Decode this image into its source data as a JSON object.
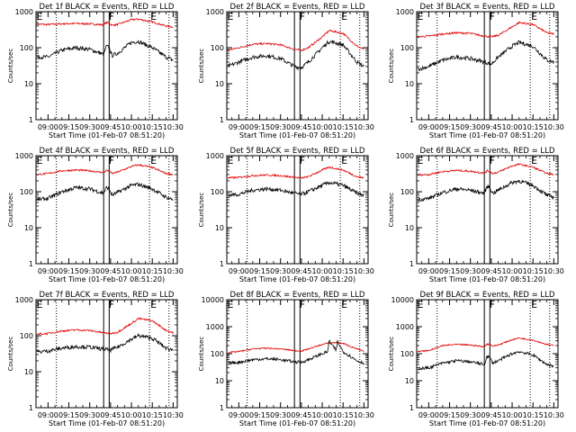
{
  "figure": {
    "background": "#ffffff",
    "axis_color": "#000000",
    "events_color": "#000000",
    "lld_color": "#e00000"
  },
  "chart_data": [
    {
      "type": "line",
      "title": "Det 1f BLACK = Events, RED = LLD",
      "xlabel": "Start Time (01-Feb-07 08:51:20)",
      "ylabel": "Counts/sec",
      "xticks": [
        "09:00",
        "09:15",
        "09:30",
        "09:45",
        "10:00",
        "10:15",
        "10:30"
      ],
      "yticks": [
        "1",
        "10",
        "100",
        "1000"
      ],
      "ylim": [
        1,
        1000
      ],
      "yscale": "log",
      "grid": false,
      "markers": [
        {
          "label": "E",
          "x": "08:51"
        },
        {
          "label": "F",
          "x": "09:43"
        },
        {
          "label": "E",
          "x": "10:13"
        }
      ],
      "dotted_lines": [
        "09:06",
        "10:13",
        "10:27"
      ],
      "solid_lines": [
        "09:40",
        "09:44"
      ],
      "series": [
        {
          "x": [
            "08:52",
            "09:00",
            "09:10",
            "09:20",
            "09:30",
            "09:40",
            "09:42",
            "09:44",
            "09:46",
            "09:50",
            "10:00",
            "10:05",
            "10:15",
            "10:25",
            "10:30"
          ],
          "values": [
            450,
            440,
            460,
            470,
            460,
            430,
            500,
            480,
            420,
            440,
            600,
            620,
            520,
            400,
            380
          ]
        },
        {
          "x": [
            "08:52",
            "09:00",
            "09:10",
            "09:20",
            "09:30",
            "09:40",
            "09:42",
            "09:44",
            "09:46",
            "09:50",
            "10:00",
            "10:05",
            "10:15",
            "10:25",
            "10:30"
          ],
          "values": [
            55,
            55,
            85,
            100,
            90,
            65,
            110,
            100,
            60,
            70,
            140,
            150,
            100,
            55,
            45
          ]
        }
      ]
    },
    {
      "type": "line",
      "title": "Det 2f BLACK = Events, RED = LLD",
      "xlabel": "Start Time (01-Feb-07 08:51:20)",
      "ylabel": "Counts/sec",
      "xticks": [
        "09:00",
        "09:15",
        "09:30",
        "09:45",
        "10:00",
        "10:15",
        "10:30"
      ],
      "yticks": [
        "1",
        "10",
        "100",
        "1000"
      ],
      "ylim": [
        1,
        1000
      ],
      "yscale": "log",
      "grid": false,
      "markers": [
        {
          "label": "E",
          "x": "08:51"
        },
        {
          "label": "F",
          "x": "09:43"
        },
        {
          "label": "E",
          "x": "10:13"
        }
      ],
      "dotted_lines": [
        "09:06",
        "10:13",
        "10:27"
      ],
      "solid_lines": [
        "09:40",
        "09:44"
      ],
      "series": [
        {
          "x": [
            "08:52",
            "09:00",
            "09:10",
            "09:20",
            "09:30",
            "09:40",
            "09:45",
            "09:50",
            "10:00",
            "10:05",
            "10:15",
            "10:25",
            "10:30"
          ],
          "values": [
            85,
            100,
            125,
            130,
            120,
            90,
            85,
            100,
            200,
            300,
            250,
            110,
            90
          ]
        },
        {
          "x": [
            "08:52",
            "09:00",
            "09:10",
            "09:20",
            "09:30",
            "09:40",
            "09:45",
            "09:50",
            "10:00",
            "10:05",
            "10:15",
            "10:25",
            "10:30"
          ],
          "values": [
            30,
            40,
            55,
            60,
            50,
            30,
            28,
            40,
            100,
            150,
            120,
            40,
            30
          ]
        }
      ]
    },
    {
      "type": "line",
      "title": "Det 3f BLACK = Events, RED = LLD",
      "xlabel": "Start Time (01-Feb-07 08:51:20)",
      "ylabel": "Counts/sec",
      "xticks": [
        "09:00",
        "09:15",
        "09:30",
        "09:45",
        "10:00",
        "10:15",
        "10:30"
      ],
      "yticks": [
        "1",
        "10",
        "100",
        "1000"
      ],
      "ylim": [
        1,
        1000
      ],
      "yscale": "log",
      "grid": false,
      "markers": [
        {
          "label": "E",
          "x": "08:51"
        },
        {
          "label": "F",
          "x": "09:43"
        },
        {
          "label": "E",
          "x": "10:13"
        }
      ],
      "dotted_lines": [
        "09:06",
        "10:13",
        "10:27"
      ],
      "solid_lines": [
        "09:40",
        "09:44"
      ],
      "series": [
        {
          "x": [
            "08:52",
            "09:00",
            "09:10",
            "09:20",
            "09:30",
            "09:40",
            "09:45",
            "09:50",
            "10:00",
            "10:05",
            "10:15",
            "10:25",
            "10:30"
          ],
          "values": [
            200,
            210,
            240,
            260,
            250,
            210,
            200,
            220,
            380,
            500,
            440,
            260,
            240
          ]
        },
        {
          "x": [
            "08:52",
            "09:00",
            "09:10",
            "09:20",
            "09:30",
            "09:40",
            "09:45",
            "09:50",
            "10:00",
            "10:05",
            "10:15",
            "10:25",
            "10:30"
          ],
          "values": [
            25,
            30,
            45,
            55,
            50,
            40,
            35,
            55,
            110,
            140,
            110,
            45,
            40
          ]
        }
      ]
    },
    {
      "type": "line",
      "title": "Det 4f BLACK = Events, RED = LLD",
      "xlabel": "Start Time (01-Feb-07 08:51:20)",
      "ylabel": "Counts/sec",
      "xticks": [
        "09:00",
        "09:15",
        "09:30",
        "09:45",
        "10:00",
        "10:15",
        "10:30"
      ],
      "yticks": [
        "1",
        "10",
        "100",
        "1000"
      ],
      "ylim": [
        1,
        1000
      ],
      "yscale": "log",
      "grid": false,
      "markers": [
        {
          "label": "E",
          "x": "08:51"
        },
        {
          "label": "F",
          "x": "09:43"
        },
        {
          "label": "E",
          "x": "10:13"
        }
      ],
      "dotted_lines": [
        "09:06",
        "10:13",
        "10:27"
      ],
      "solid_lines": [
        "09:40",
        "09:44"
      ],
      "series": [
        {
          "x": [
            "08:52",
            "09:00",
            "09:10",
            "09:20",
            "09:30",
            "09:40",
            "09:42",
            "09:44",
            "09:46",
            "09:50",
            "10:00",
            "10:05",
            "10:15",
            "10:25",
            "10:30"
          ],
          "values": [
            300,
            320,
            380,
            400,
            380,
            340,
            390,
            370,
            320,
            350,
            500,
            560,
            470,
            320,
            300
          ]
        },
        {
          "x": [
            "08:52",
            "09:00",
            "09:10",
            "09:20",
            "09:30",
            "09:40",
            "09:42",
            "09:44",
            "09:46",
            "09:50",
            "10:00",
            "10:05",
            "10:15",
            "10:25",
            "10:30"
          ],
          "values": [
            60,
            65,
            100,
            130,
            120,
            90,
            130,
            120,
            80,
            95,
            150,
            160,
            120,
            70,
            60
          ]
        }
      ]
    },
    {
      "type": "line",
      "title": "Det 5f BLACK = Events, RED = LLD",
      "xlabel": "Start Time (01-Feb-07 08:51:20)",
      "ylabel": "Counts/sec",
      "xticks": [
        "09:00",
        "09:15",
        "09:30",
        "09:45",
        "10:00",
        "10:15",
        "10:30"
      ],
      "yticks": [
        "1",
        "10",
        "100",
        "1000"
      ],
      "ylim": [
        1,
        1000
      ],
      "yscale": "log",
      "grid": false,
      "markers": [
        {
          "label": "E",
          "x": "08:51"
        },
        {
          "label": "F",
          "x": "09:43"
        },
        {
          "label": "E",
          "x": "10:13"
        }
      ],
      "dotted_lines": [
        "09:06",
        "10:13",
        "10:27"
      ],
      "solid_lines": [
        "09:40",
        "09:44"
      ],
      "series": [
        {
          "x": [
            "08:52",
            "09:00",
            "09:10",
            "09:20",
            "09:30",
            "09:40",
            "09:45",
            "09:50",
            "10:00",
            "10:05",
            "10:15",
            "10:25",
            "10:30"
          ],
          "values": [
            240,
            250,
            280,
            290,
            280,
            250,
            240,
            260,
            400,
            480,
            400,
            260,
            240
          ]
        },
        {
          "x": [
            "08:52",
            "09:00",
            "09:10",
            "09:20",
            "09:30",
            "09:40",
            "09:45",
            "09:50",
            "10:00",
            "10:05",
            "10:15",
            "10:25",
            "10:30"
          ],
          "values": [
            80,
            85,
            110,
            120,
            110,
            90,
            85,
            100,
            150,
            180,
            150,
            90,
            80
          ]
        }
      ]
    },
    {
      "type": "line",
      "title": "Det 6f BLACK = Events, RED = LLD",
      "xlabel": "Start Time (01-Feb-07 08:51:20)",
      "ylabel": "Counts/sec",
      "xticks": [
        "09:00",
        "09:15",
        "09:30",
        "09:45",
        "10:00",
        "10:15",
        "10:30"
      ],
      "yticks": [
        "1",
        "10",
        "100",
        "1000"
      ],
      "ylim": [
        1,
        1000
      ],
      "yscale": "log",
      "grid": false,
      "markers": [
        {
          "label": "E",
          "x": "08:51"
        },
        {
          "label": "F",
          "x": "09:43"
        },
        {
          "label": "E",
          "x": "10:13"
        }
      ],
      "dotted_lines": [
        "09:06",
        "10:13",
        "10:27"
      ],
      "solid_lines": [
        "09:40",
        "09:44"
      ],
      "series": [
        {
          "x": [
            "08:52",
            "09:00",
            "09:10",
            "09:20",
            "09:30",
            "09:40",
            "09:42",
            "09:44",
            "09:46",
            "09:50",
            "10:00",
            "10:05",
            "10:15",
            "10:25",
            "10:30"
          ],
          "values": [
            290,
            300,
            360,
            390,
            370,
            330,
            380,
            360,
            320,
            350,
            520,
            580,
            480,
            320,
            300
          ]
        },
        {
          "x": [
            "08:52",
            "09:00",
            "09:10",
            "09:20",
            "09:30",
            "09:40",
            "09:42",
            "09:44",
            "09:46",
            "09:50",
            "10:00",
            "10:05",
            "10:15",
            "10:25",
            "10:30"
          ],
          "values": [
            60,
            65,
            95,
            120,
            110,
            90,
            140,
            130,
            90,
            110,
            180,
            200,
            150,
            80,
            70
          ]
        }
      ]
    },
    {
      "type": "line",
      "title": "Det 7f BLACK = Events, RED = LLD",
      "xlabel": "Start Time (01-Feb-07 08:51:20)",
      "ylabel": "Counts/sec",
      "xticks": [
        "09:00",
        "09:15",
        "09:30",
        "09:45",
        "10:00",
        "10:15",
        "10:30"
      ],
      "yticks": [
        "1",
        "10",
        "100",
        "1000"
      ],
      "ylim": [
        1,
        1000
      ],
      "yscale": "log",
      "grid": false,
      "markers": [
        {
          "label": "E",
          "x": "08:51"
        },
        {
          "label": "F",
          "x": "09:43"
        },
        {
          "label": "E",
          "x": "10:13"
        }
      ],
      "dotted_lines": [
        "09:06",
        "10:13",
        "10:27"
      ],
      "solid_lines": [
        "09:40",
        "09:44"
      ],
      "series": [
        {
          "x": [
            "08:52",
            "09:00",
            "09:10",
            "09:20",
            "09:30",
            "09:40",
            "09:45",
            "09:50",
            "10:00",
            "10:05",
            "10:15",
            "10:25",
            "10:30"
          ],
          "values": [
            110,
            115,
            135,
            145,
            140,
            120,
            115,
            125,
            220,
            300,
            260,
            140,
            120
          ]
        },
        {
          "x": [
            "08:52",
            "09:00",
            "09:10",
            "09:20",
            "09:30",
            "09:40",
            "09:45",
            "09:50",
            "10:00",
            "10:05",
            "10:15",
            "10:25",
            "10:30"
          ],
          "values": [
            35,
            38,
            45,
            50,
            48,
            42,
            40,
            48,
            80,
            100,
            85,
            45,
            40
          ]
        }
      ]
    },
    {
      "type": "line",
      "title": "Det 8f BLACK = Events, RED = LLD",
      "xlabel": "Start Time (01-Feb-07 08:51:20)",
      "ylabel": "Counts/sec",
      "xticks": [
        "09:00",
        "09:15",
        "09:30",
        "09:45",
        "10:00",
        "10:15",
        "10:30"
      ],
      "yticks": [
        "1",
        "10",
        "100",
        "1000",
        "10000"
      ],
      "ylim": [
        1,
        10000
      ],
      "yscale": "log",
      "grid": false,
      "markers": [
        {
          "label": "E",
          "x": "08:51"
        },
        {
          "label": "F",
          "x": "09:43"
        },
        {
          "label": "E",
          "x": "10:13"
        }
      ],
      "dotted_lines": [
        "09:06",
        "10:13",
        "10:27"
      ],
      "solid_lines": [
        "09:40",
        "09:44"
      ],
      "series": [
        {
          "x": [
            "08:52",
            "09:00",
            "09:10",
            "09:20",
            "09:30",
            "09:40",
            "09:45",
            "09:50",
            "10:00",
            "10:05",
            "10:10",
            "10:15",
            "10:25",
            "10:30"
          ],
          "values": [
            110,
            120,
            150,
            160,
            150,
            130,
            125,
            150,
            220,
            250,
            260,
            240,
            150,
            120
          ]
        },
        {
          "x": [
            "08:52",
            "09:00",
            "09:10",
            "09:20",
            "09:30",
            "09:40",
            "09:45",
            "09:50",
            "10:00",
            "10:04",
            "10:05",
            "10:10",
            "10:11",
            "10:15",
            "10:25",
            "10:30"
          ],
          "values": [
            45,
            48,
            60,
            65,
            60,
            50,
            48,
            60,
            100,
            120,
            300,
            130,
            280,
            120,
            55,
            45
          ]
        }
      ]
    },
    {
      "type": "line",
      "title": "Det 9f BLACK = Events, RED = LLD",
      "xlabel": "Start Time (01-Feb-07 08:51:20)",
      "ylabel": "Counts/sec",
      "xticks": [
        "09:00",
        "09:15",
        "09:30",
        "09:45",
        "10:00",
        "10:15",
        "10:30"
      ],
      "yticks": [
        "1",
        "10",
        "100",
        "1000",
        "10000"
      ],
      "ylim": [
        1,
        10000
      ],
      "yscale": "log",
      "grid": false,
      "markers": [
        {
          "label": "E",
          "x": "08:51"
        },
        {
          "label": "F",
          "x": "09:43"
        },
        {
          "label": "E",
          "x": "10:13"
        }
      ],
      "dotted_lines": [
        "09:06",
        "10:13",
        "10:27"
      ],
      "solid_lines": [
        "09:40",
        "09:44"
      ],
      "series": [
        {
          "x": [
            "08:52",
            "09:00",
            "09:10",
            "09:20",
            "09:30",
            "09:40",
            "09:42",
            "09:44",
            "09:46",
            "09:50",
            "10:00",
            "10:05",
            "10:15",
            "10:25",
            "10:30"
          ],
          "values": [
            120,
            130,
            200,
            220,
            210,
            180,
            230,
            220,
            190,
            210,
            330,
            380,
            320,
            220,
            200
          ]
        },
        {
          "x": [
            "08:52",
            "09:00",
            "09:10",
            "09:20",
            "09:30",
            "09:40",
            "09:42",
            "09:44",
            "09:46",
            "09:50",
            "10:00",
            "10:05",
            "10:15",
            "10:25",
            "10:30"
          ],
          "values": [
            28,
            30,
            45,
            55,
            50,
            40,
            80,
            70,
            45,
            55,
            100,
            120,
            90,
            40,
            35
          ]
        }
      ]
    }
  ]
}
